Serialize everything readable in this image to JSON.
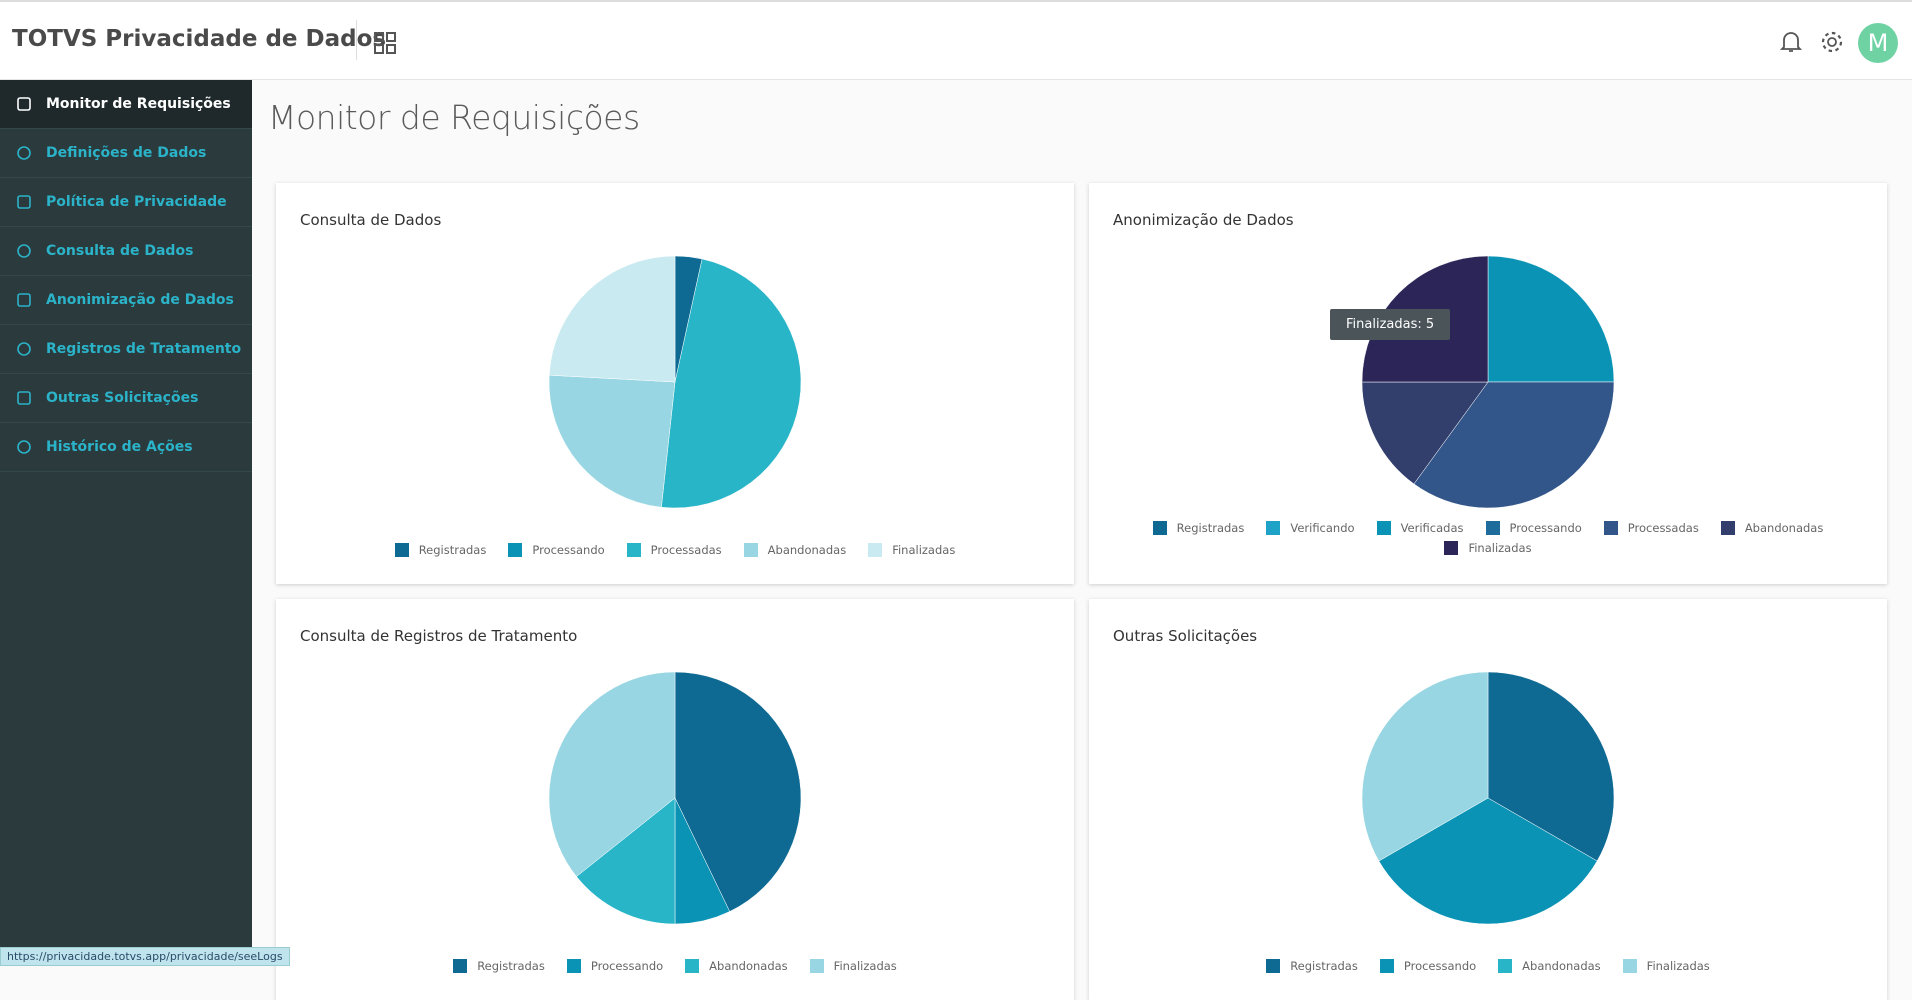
{
  "header": {
    "title": "TOTVS Privacidade de Dados",
    "avatar": "M"
  },
  "sidebar": {
    "items": [
      "Monitor de Requisições",
      "Definições de Dados",
      "Política de Privacidade",
      "Consulta de Dados",
      "Anonimização de Dados",
      "Registros de Tratamento",
      "Outras Solicitações",
      "Histórico de Ações"
    ]
  },
  "page_title": "Monitor de Requisições",
  "chart_data": [
    {
      "type": "pie",
      "title": "Consulta de Dados",
      "categories": [
        "Registradas",
        "Processando",
        "Processadas",
        "Abandonadas",
        "Finalizadas"
      ],
      "values": [
        1,
        0,
        14,
        7,
        7
      ],
      "colors": [
        "#0e6a93",
        "#0a93b5",
        "#29b5c8",
        "#97d6e2",
        "#c9eaf0"
      ]
    },
    {
      "type": "pie",
      "title": "Anonimização de Dados",
      "categories": [
        "Registradas",
        "Verificando",
        "Verificadas",
        "Processando",
        "Processadas",
        "Abandonadas",
        "Finalizadas"
      ],
      "values": [
        0,
        0,
        5,
        0,
        7,
        3,
        5
      ],
      "colors": [
        "#0e6a93",
        "#1ea2c8",
        "#0a93b5",
        "#1d6c9c",
        "#33568a",
        "#323f6d",
        "#2b2558"
      ],
      "tooltip": "Finalizadas: 5"
    },
    {
      "type": "pie",
      "title": "Consulta de Registros de Tratamento",
      "categories": [
        "Registradas",
        "Processando",
        "Abandonadas",
        "Finalizadas"
      ],
      "values": [
        6,
        1,
        2,
        5
      ],
      "colors": [
        "#0e6a93",
        "#0a93b5",
        "#29b5c8",
        "#97d6e2"
      ]
    },
    {
      "type": "pie",
      "title": "Outras Solicitações",
      "categories": [
        "Registradas",
        "Processando",
        "Abandonadas",
        "Finalizadas"
      ],
      "values": [
        1,
        1,
        0,
        1
      ],
      "colors": [
        "#0e6a93",
        "#0a93b5",
        "#29b5c8",
        "#97d6e2"
      ]
    }
  ],
  "status_url": "https://privacidade.totvs.app/privacidade/seeLogs"
}
